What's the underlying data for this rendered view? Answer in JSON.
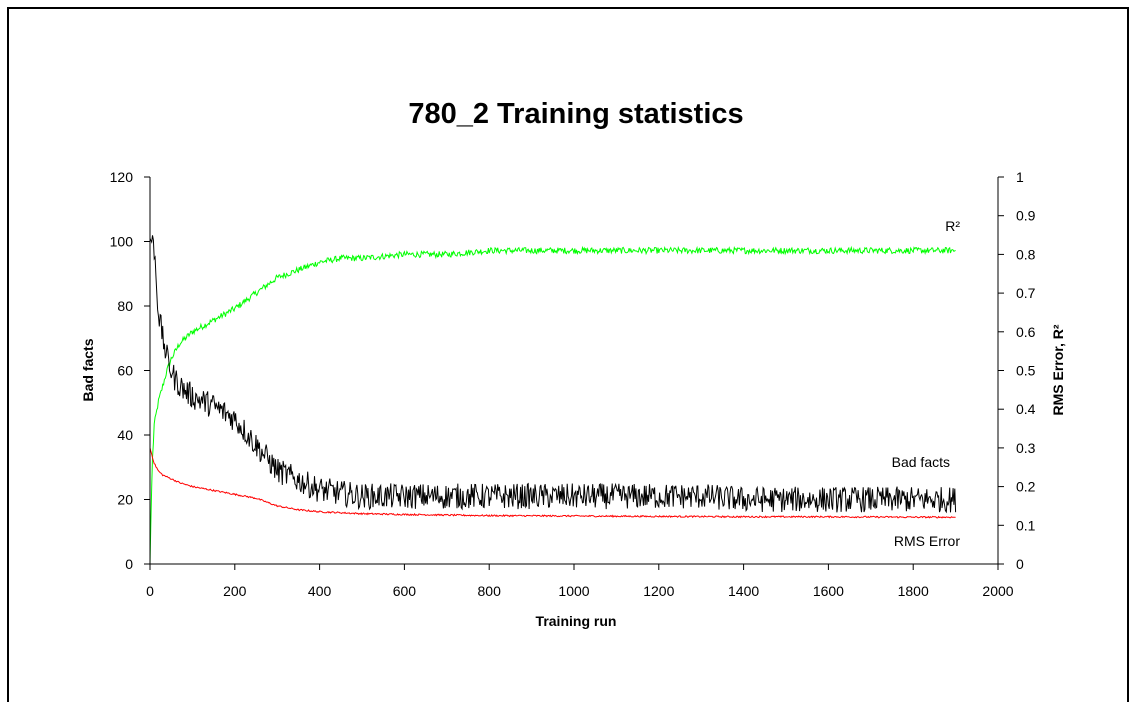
{
  "chart_data": {
    "type": "line",
    "title": "780_2 Training statistics",
    "xlabel": "Training run",
    "ylabel": "Bad facts",
    "y2label": "RMS Error, R²",
    "xlim": [
      0,
      2000
    ],
    "ylim": [
      0,
      120
    ],
    "y2lim": [
      0,
      1
    ],
    "x_ticks": [
      "0",
      "200",
      "400",
      "600",
      "800",
      "1000",
      "1200",
      "1400",
      "1600",
      "1800",
      "2000"
    ],
    "y_ticks": [
      "0",
      "20",
      "40",
      "60",
      "80",
      "100",
      "120"
    ],
    "y2_ticks": [
      "0",
      "0.1",
      "0.2",
      "0.3",
      "0.4",
      "0.5",
      "0.6",
      "0.7",
      "0.8",
      "0.9",
      "1"
    ],
    "grid": false,
    "legend": "none",
    "series": [
      {
        "name": "Bad facts",
        "axis": "left",
        "color": "#000000",
        "noise": 4,
        "x": [
          0,
          10,
          20,
          30,
          40,
          50,
          60,
          80,
          100,
          150,
          200,
          250,
          300,
          350,
          400,
          450,
          500,
          600,
          700,
          800,
          900,
          1000,
          1100,
          1200,
          1300,
          1400,
          1500,
          1600,
          1700,
          1800,
          1900
        ],
        "values": [
          101,
          98,
          78,
          70,
          64,
          60,
          57,
          54,
          52,
          49,
          45,
          37,
          29,
          26,
          23,
          22,
          21,
          21,
          21,
          21,
          21,
          21,
          21,
          21,
          21,
          20,
          20,
          20,
          20,
          20,
          20
        ]
      },
      {
        "name": "R²",
        "axis": "right",
        "color": "#00ff00",
        "noise": 0.008,
        "x": [
          0,
          5,
          10,
          20,
          30,
          40,
          50,
          70,
          100,
          150,
          200,
          250,
          300,
          350,
          400,
          450,
          500,
          600,
          700,
          800,
          900,
          1000,
          1200,
          1400,
          1600,
          1800,
          1900
        ],
        "values": [
          0.0,
          0.25,
          0.36,
          0.42,
          0.46,
          0.5,
          0.53,
          0.57,
          0.6,
          0.63,
          0.66,
          0.7,
          0.74,
          0.76,
          0.78,
          0.79,
          0.79,
          0.8,
          0.8,
          0.81,
          0.81,
          0.81,
          0.81,
          0.81,
          0.81,
          0.81,
          0.81
        ]
      },
      {
        "name": "RMS Error",
        "axis": "right",
        "color": "#ff0000",
        "noise": 0.002,
        "x": [
          0,
          10,
          20,
          30,
          50,
          70,
          100,
          150,
          200,
          250,
          300,
          350,
          400,
          500,
          600,
          800,
          1000,
          1200,
          1400,
          1600,
          1800,
          1900
        ],
        "values": [
          0.3,
          0.26,
          0.24,
          0.23,
          0.22,
          0.21,
          0.2,
          0.19,
          0.18,
          0.17,
          0.15,
          0.14,
          0.135,
          0.13,
          0.128,
          0.125,
          0.124,
          0.123,
          0.122,
          0.122,
          0.121,
          0.121
        ]
      }
    ]
  }
}
